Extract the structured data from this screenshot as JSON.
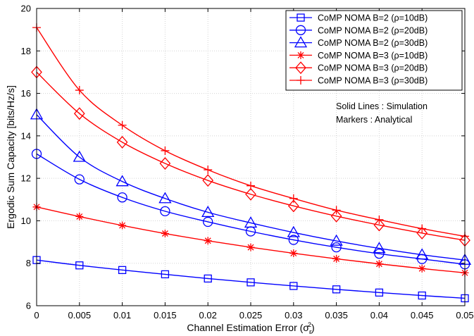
{
  "chart_data": {
    "type": "line",
    "title": "",
    "xlabel": "Channel Estimation Error",
    "xlabel_symbol": "(σ",
    "xlabel_sub": "ε",
    "xlabel_sup": "2",
    "xlabel_close": ")",
    "ylabel": "Ergodic Sum Capacity [bits/Hz/s]",
    "xlim": [
      0,
      0.05
    ],
    "ylim": [
      6,
      20
    ],
    "grid": true,
    "legend_position": "top-right",
    "x": [
      0,
      0.005,
      0.01,
      0.015,
      0.02,
      0.025,
      0.03,
      0.035,
      0.04,
      0.045,
      0.05
    ],
    "x_tick_labels": [
      "0",
      "0.005",
      "0.01",
      "0.015",
      "0.02",
      "0.025",
      "0.03",
      "0.035",
      "0.04",
      "0.045",
      "0.05"
    ],
    "y_tick_labels": [
      "6",
      "8",
      "10",
      "12",
      "14",
      "16",
      "18",
      "20"
    ],
    "series": [
      {
        "name": "CoMP NOMA B=2 (ρ=10dB)",
        "color": "#0000ff",
        "marker": "square",
        "values": [
          8.15,
          7.9,
          7.68,
          7.48,
          7.28,
          7.1,
          6.93,
          6.77,
          6.62,
          6.48,
          6.35
        ]
      },
      {
        "name": "CoMP NOMA B=2 (ρ=20dB)",
        "color": "#0000ff",
        "marker": "circle",
        "values": [
          13.15,
          11.95,
          11.1,
          10.45,
          9.95,
          9.5,
          9.1,
          8.75,
          8.45,
          8.2,
          7.95
        ]
      },
      {
        "name": "CoMP NOMA B=2 (ρ=30dB)",
        "color": "#0000ff",
        "marker": "triangle",
        "values": [
          15.0,
          13.0,
          11.85,
          11.05,
          10.4,
          9.9,
          9.45,
          9.05,
          8.7,
          8.4,
          8.15
        ]
      },
      {
        "name": "CoMP NOMA B=3 (ρ=10dB)",
        "color": "#ff0000",
        "marker": "asterisk",
        "values": [
          10.65,
          10.2,
          9.78,
          9.4,
          9.06,
          8.75,
          8.47,
          8.21,
          7.97,
          7.75,
          7.55
        ]
      },
      {
        "name": "CoMP NOMA B=3 (ρ=20dB)",
        "color": "#ff0000",
        "marker": "diamond",
        "values": [
          17.0,
          15.05,
          13.7,
          12.7,
          11.9,
          11.25,
          10.7,
          10.22,
          9.8,
          9.42,
          9.08
        ]
      },
      {
        "name": "CoMP NOMA B=3 (ρ=30dB)",
        "color": "#ff0000",
        "marker": "plus",
        "values": [
          19.1,
          16.15,
          14.5,
          13.3,
          12.4,
          11.65,
          11.05,
          10.5,
          10.05,
          9.63,
          9.27
        ]
      }
    ],
    "annotations": [
      "Solid Lines : Simulation",
      "Markers : Analytical"
    ]
  }
}
